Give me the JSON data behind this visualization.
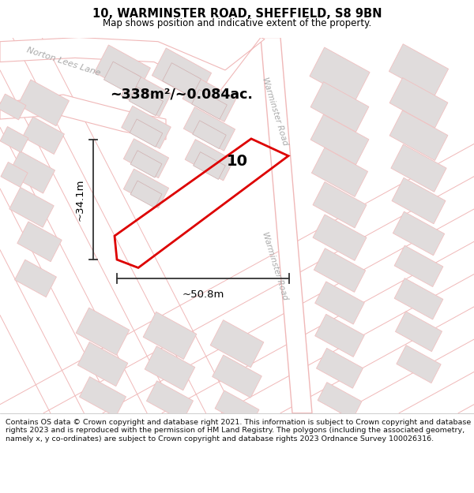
{
  "title": "10, WARMINSTER ROAD, SHEFFIELD, S8 9BN",
  "subtitle": "Map shows position and indicative extent of the property.",
  "footer": "Contains OS data © Crown copyright and database right 2021. This information is subject to Crown copyright and database rights 2023 and is reproduced with the permission of HM Land Registry. The polygons (including the associated geometry, namely x, y co-ordinates) are subject to Crown copyright and database rights 2023 Ordnance Survey 100026316.",
  "area_text": "~338m²/~0.084ac.",
  "width_text": "~50.8m",
  "height_text": "~34.1m",
  "property_number": "10",
  "map_bg": "#ffffff",
  "road_outline_color": "#f0b8b8",
  "road_fill_color": "#ffffff",
  "building_fill": "#e0dcdc",
  "building_edge": "#ccb8b8",
  "building_outline": "#f0c0c0",
  "highlight_color": "#dd0000",
  "title_color": "#000000",
  "dim_line_color": "#333333",
  "road_label_color": "#aaaaaa",
  "norton_label": "Norton Lees Lane",
  "warminster_label": "Warminster Road"
}
